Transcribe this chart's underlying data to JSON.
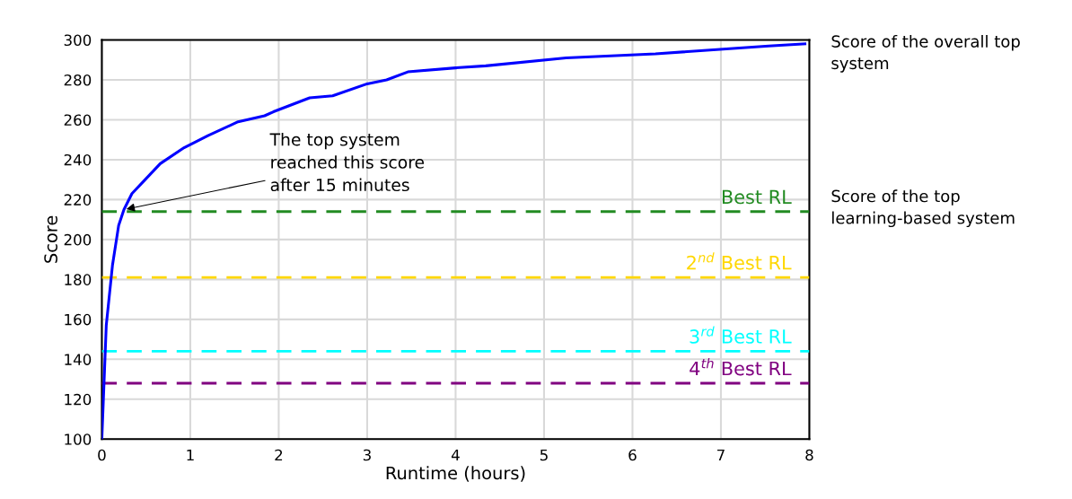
{
  "chart_data": {
    "type": "line",
    "xlabel": "Runtime (hours)",
    "ylabel": "Score",
    "x": [
      0,
      0.05,
      0.12,
      0.19,
      0.25,
      0.34,
      0.49,
      0.66,
      0.93,
      1.2,
      1.54,
      1.84,
      1.94,
      2.35,
      2.61,
      3.0,
      3.22,
      3.46,
      4.0,
      4.34,
      5.25,
      6.26,
      7.54,
      7.95
    ],
    "series": [
      {
        "color": "#0000ff",
        "values": [
          100,
          157,
          187,
          207,
          215,
          223,
          230,
          238,
          246,
          252,
          259,
          262,
          264,
          271,
          272,
          278,
          280,
          284,
          286,
          287,
          291,
          293,
          297,
          298
        ]
      }
    ],
    "xlim": [
      0,
      8
    ],
    "xticks": [
      0,
      1,
      2,
      3,
      4,
      5,
      6,
      7,
      8
    ],
    "ylim": [
      100,
      300
    ],
    "yticks": [
      100,
      120,
      140,
      160,
      180,
      200,
      220,
      240,
      260,
      280,
      300
    ],
    "grid": true,
    "marker": "none",
    "line_style": "solid",
    "ref_lines": [
      {
        "axis": "y",
        "value": 214,
        "label": "Best RL",
        "color": "#228b22",
        "line_style": "dashed"
      },
      {
        "axis": "y",
        "value": 181,
        "label": "2$^{nd}$ Best RL",
        "color": "#ffd700",
        "line_style": "dashed"
      },
      {
        "axis": "y",
        "value": 144,
        "label": "3$^{rd}$ Best RL",
        "color": "#00ffff",
        "line_style": "dashed"
      },
      {
        "axis": "y",
        "value": 128,
        "label": "4$^{th}$ Best RL",
        "color": "#800080",
        "line_style": "dashed"
      }
    ],
    "annotations": [
      {
        "text": "The top system\nreached this score\nafter 15 minutes",
        "x": 0.25,
        "y": 215
      },
      "Score of the overall top\nsystem",
      "Score of the top\nlearning-based system"
    ]
  }
}
